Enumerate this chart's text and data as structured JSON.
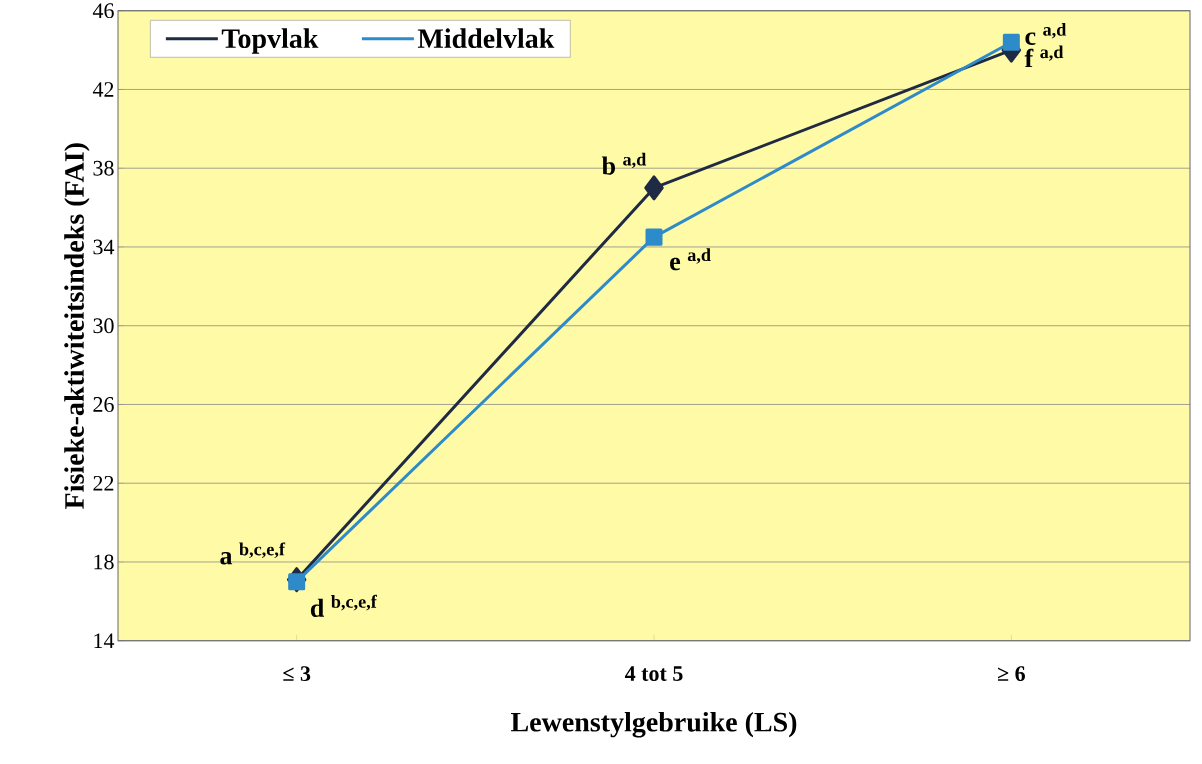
{
  "chart_data": {
    "type": "line",
    "xlabel": "Lewenstylgebruike (LS)",
    "ylabel": "Fisieke-aktiwiteitsindeks (FAI)",
    "categories": [
      "≤ 3",
      "4 tot 5",
      "≥ 6"
    ],
    "series": [
      {
        "name": "Topvlak",
        "color": "#1f2a44",
        "marker": "diamond",
        "values": [
          17.1,
          37.0,
          44.0
        ]
      },
      {
        "name": "Middelvlak",
        "color": "#2e8bc9",
        "marker": "square",
        "values": [
          17.0,
          34.5,
          44.4
        ]
      }
    ],
    "ylim": [
      14,
      46
    ],
    "yticks": [
      14,
      18,
      22,
      26,
      30,
      34,
      38,
      42,
      46
    ],
    "grid": "y",
    "legend": "top left",
    "line_style": "solid",
    "annotations": [
      {
        "text": "a $^{b,c,e,f}$",
        "x": "≤ 3",
        "y": 17.1
      },
      {
        "text": "b $^{a,d}$",
        "x": "4 tot 5",
        "y": 37.0
      },
      {
        "text": "c $^{a,d}$",
        "x": "≥ 6",
        "y": 44.0
      },
      {
        "text": "d $^{b,c,e,f}$",
        "x": "≤ 3",
        "y": 17.0
      },
      {
        "text": "e $^{a,d}$",
        "x": "4 tot 5",
        "y": 34.5
      },
      {
        "text": "f $^{a,d}$",
        "x": "≥ 6",
        "y": 44.4
      }
    ]
  }
}
